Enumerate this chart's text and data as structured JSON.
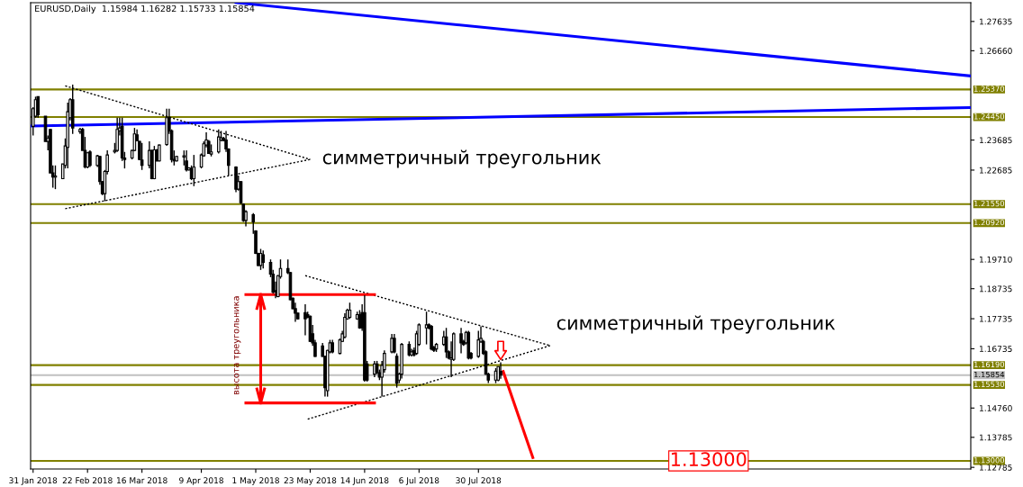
{
  "chart_data": {
    "type": "candlestick",
    "title": "EURUSD,Daily  1.15984 1.16282 1.15733 1.15854",
    "color": "#000000",
    "x": [
      "2018-01-31",
      "2018-02-01",
      "2018-02-02",
      "2018-02-05",
      "2018-02-06",
      "2018-02-07",
      "2018-02-08",
      "2018-02-09",
      "2018-02-12",
      "2018-02-13",
      "2018-02-14",
      "2018-02-15",
      "2018-02-16",
      "2018-02-19",
      "2018-02-20",
      "2018-02-21",
      "2018-02-22",
      "2018-02-23",
      "2018-02-26",
      "2018-02-27",
      "2018-02-28",
      "2018-03-01",
      "2018-03-02",
      "2018-03-05",
      "2018-03-06",
      "2018-03-07",
      "2018-03-08",
      "2018-03-09",
      "2018-03-12",
      "2018-03-13",
      "2018-03-14",
      "2018-03-15",
      "2018-03-16",
      "2018-03-19",
      "2018-03-20",
      "2018-03-21",
      "2018-03-22",
      "2018-03-23",
      "2018-03-26",
      "2018-03-27",
      "2018-03-28",
      "2018-03-29",
      "2018-03-30",
      "2018-04-02",
      "2018-04-03",
      "2018-04-04",
      "2018-04-05",
      "2018-04-06",
      "2018-04-09",
      "2018-04-10",
      "2018-04-11",
      "2018-04-12",
      "2018-04-13",
      "2018-04-16",
      "2018-04-17",
      "2018-04-18",
      "2018-04-19",
      "2018-04-20",
      "2018-04-23",
      "2018-04-24",
      "2018-04-25",
      "2018-04-26",
      "2018-04-27",
      "2018-04-30",
      "2018-05-01",
      "2018-05-02",
      "2018-05-03",
      "2018-05-04",
      "2018-05-07",
      "2018-05-08",
      "2018-05-09",
      "2018-05-10",
      "2018-05-11",
      "2018-05-14",
      "2018-05-15",
      "2018-05-16",
      "2018-05-17",
      "2018-05-18",
      "2018-05-21",
      "2018-05-22",
      "2018-05-23",
      "2018-05-24",
      "2018-05-25",
      "2018-05-28",
      "2018-05-29",
      "2018-05-30",
      "2018-05-31",
      "2018-06-01",
      "2018-06-04",
      "2018-06-05",
      "2018-06-06",
      "2018-06-07",
      "2018-06-08",
      "2018-06-11",
      "2018-06-12",
      "2018-06-13",
      "2018-06-14",
      "2018-06-15",
      "2018-06-18",
      "2018-06-19",
      "2018-06-20",
      "2018-06-21",
      "2018-06-22",
      "2018-06-25",
      "2018-06-26",
      "2018-06-27",
      "2018-06-28",
      "2018-06-29",
      "2018-07-02",
      "2018-07-03",
      "2018-07-04",
      "2018-07-05",
      "2018-07-06",
      "2018-07-09",
      "2018-07-10",
      "2018-07-11",
      "2018-07-12",
      "2018-07-13",
      "2018-07-16",
      "2018-07-17",
      "2018-07-18",
      "2018-07-19",
      "2018-07-20",
      "2018-07-23",
      "2018-07-24",
      "2018-07-25",
      "2018-07-26",
      "2018-07-27",
      "2018-07-30",
      "2018-07-31",
      "2018-08-01",
      "2018-08-02",
      "2018-08-03",
      "2018-08-06",
      "2018-08-07",
      "2018-08-08"
    ],
    "ohlc": [
      [
        1.2414,
        1.2478,
        1.2384,
        1.2473
      ],
      [
        1.2448,
        1.2513,
        1.2443,
        1.2503
      ],
      [
        1.2513,
        1.2513,
        1.2443,
        1.2453
      ],
      [
        1.2448,
        1.2448,
        1.2364,
        1.2364
      ],
      [
        1.2364,
        1.2384,
        1.2334,
        1.2374
      ],
      [
        1.2404,
        1.2404,
        1.2259,
        1.2259
      ],
      [
        1.2259,
        1.2284,
        1.221,
        1.2245
      ],
      [
        1.2245,
        1.2284,
        1.2205,
        1.2249
      ],
      [
        1.224,
        1.2289,
        1.224,
        1.2289
      ],
      [
        1.2284,
        1.2374,
        1.2274,
        1.2349
      ],
      [
        1.2344,
        1.2493,
        1.2274,
        1.2463
      ],
      [
        1.2443,
        1.2508,
        1.2434,
        1.2503
      ],
      [
        1.2503,
        1.2553,
        1.2389,
        1.2409
      ],
      [
        1.2396,
        1.2409,
        1.2389,
        1.2404
      ],
      [
        1.2404,
        1.2409,
        1.2334,
        1.2334
      ],
      [
        1.2334,
        1.2379,
        1.2274,
        1.2279
      ],
      [
        1.2279,
        1.2329,
        1.2274,
        1.2326
      ],
      [
        1.2329,
        1.2334,
        1.2279,
        1.2284
      ],
      [
        1.2284,
        1.2319,
        1.2279,
        1.2316
      ],
      [
        1.2314,
        1.2316,
        1.222,
        1.223
      ],
      [
        1.223,
        1.2232,
        1.2185,
        1.219
      ],
      [
        1.219,
        1.2269,
        1.2165,
        1.2264
      ],
      [
        1.2264,
        1.2334,
        1.2254,
        1.2319
      ],
      [
        1.2329,
        1.2359,
        1.2324,
        1.2334
      ],
      [
        1.2334,
        1.2443,
        1.2329,
        1.2404
      ],
      [
        1.2399,
        1.2443,
        1.2384,
        1.2409
      ],
      [
        1.2414,
        1.2443,
        1.2299,
        1.2309
      ],
      [
        1.2309,
        1.2329,
        1.2274,
        1.2304
      ],
      [
        1.2309,
        1.2336,
        1.2304,
        1.2334
      ],
      [
        1.2334,
        1.2409,
        1.2332,
        1.2389
      ],
      [
        1.2386,
        1.2404,
        1.2364,
        1.2366
      ],
      [
        1.2364,
        1.2366,
        1.2302,
        1.2304
      ],
      [
        1.2302,
        1.2359,
        1.2269,
        1.2284
      ],
      [
        1.2284,
        1.2364,
        1.2274,
        1.2334
      ],
      [
        1.2334,
        1.2336,
        1.2238,
        1.224
      ],
      [
        1.224,
        1.2349,
        1.2238,
        1.2336
      ],
      [
        1.2336,
        1.2339,
        1.2297,
        1.2299
      ],
      [
        1.2299,
        1.2354,
        1.2297,
        1.2352
      ],
      [
        1.2354,
        1.2473,
        1.2349,
        1.2443
      ],
      [
        1.2443,
        1.2473,
        1.2389,
        1.2399
      ],
      [
        1.2399,
        1.2404,
        1.2294,
        1.2304
      ],
      [
        1.2304,
        1.2334,
        1.2284,
        1.2299
      ],
      [
        1.2299,
        1.2316,
        1.2297,
        1.2314
      ],
      [
        1.2312,
        1.2334,
        1.2284,
        1.2316
      ],
      [
        1.2299,
        1.2334,
        1.2264,
        1.2269
      ],
      [
        1.2269,
        1.2278,
        1.2267,
        1.2276
      ],
      [
        1.2274,
        1.2284,
        1.2235,
        1.224
      ],
      [
        1.224,
        1.2319,
        1.2215,
        1.2279
      ],
      [
        1.2279,
        1.2324,
        1.2274,
        1.2319
      ],
      [
        1.2316,
        1.2364,
        1.2314,
        1.2356
      ],
      [
        1.2352,
        1.2394,
        1.2344,
        1.2369
      ],
      [
        1.2364,
        1.2369,
        1.2322,
        1.2324
      ],
      [
        1.2322,
        1.2354,
        1.2314,
        1.2329
      ],
      [
        1.2329,
        1.2404,
        1.2324,
        1.2379
      ],
      [
        1.2369,
        1.2399,
        1.2364,
        1.2376
      ],
      [
        1.2374,
        1.2379,
        1.2364,
        1.2366
      ],
      [
        1.2369,
        1.2399,
        1.2329,
        1.2339
      ],
      [
        1.2339,
        1.2341,
        1.225,
        1.2284
      ],
      [
        1.2279,
        1.2281,
        1.2195,
        1.2205
      ],
      [
        1.2205,
        1.225,
        1.22,
        1.223
      ],
      [
        1.223,
        1.2232,
        1.2155,
        1.216
      ],
      [
        1.2155,
        1.2157,
        1.2096,
        1.2101
      ],
      [
        1.2101,
        1.2135,
        1.2081,
        1.213
      ],
      [
        1.212,
        1.2125,
        1.2056,
        1.2096
      ],
      [
        1.2066,
        1.2068,
        1.1989,
        1.1991
      ],
      [
        1.1991,
        1.1993,
        1.1949,
        1.1951
      ],
      [
        1.1951,
        1.2006,
        1.1936,
        1.1991
      ],
      [
        1.1986,
        1.2001,
        1.1941,
        1.1961
      ],
      [
        1.1961,
        1.1971,
        1.1912,
        1.1922
      ],
      [
        1.1922,
        1.1936,
        1.1857,
        1.1862
      ],
      [
        1.1867,
        1.1897,
        1.1842,
        1.1862
      ],
      [
        1.1847,
        1.1919,
        1.1845,
        1.1917
      ],
      [
        1.1914,
        1.1971,
        1.1907,
        1.1941
      ],
      [
        1.1941,
        1.1971,
        1.1922,
        1.1927
      ],
      [
        1.1927,
        1.1929,
        1.1835,
        1.1837
      ],
      [
        1.1842,
        1.1844,
        1.1805,
        1.1807
      ],
      [
        1.1807,
        1.1827,
        1.1763,
        1.1792
      ],
      [
        1.1792,
        1.1794,
        1.1771,
        1.1773
      ],
      [
        1.1794,
        1.1822,
        1.1718,
        1.1773
      ],
      [
        1.1787,
        1.1797,
        1.1775,
        1.1778
      ],
      [
        1.1782,
        1.1784,
        1.1696,
        1.1698
      ],
      [
        1.1723,
        1.1753,
        1.1683,
        1.1693
      ],
      [
        1.1693,
        1.1703,
        1.1646,
        1.1648
      ],
      [
        1.1683,
        1.1693,
        1.1646,
        1.1648
      ],
      [
        1.1648,
        1.165,
        1.1514,
        1.1544
      ],
      [
        1.1534,
        1.167,
        1.1514,
        1.1668
      ],
      [
        1.1663,
        1.1703,
        1.1658,
        1.1693
      ],
      [
        1.1693,
        1.1703,
        1.1658,
        1.1663
      ],
      [
        1.1658,
        1.1708,
        1.1655,
        1.1703
      ],
      [
        1.1698,
        1.1733,
        1.1696,
        1.1723
      ],
      [
        1.1713,
        1.1792,
        1.1708,
        1.1778
      ],
      [
        1.1773,
        1.1807,
        1.177,
        1.1802
      ],
      [
        1.1778,
        1.1827,
        1.1773,
        1.1802
      ],
      [
        1.1773,
        1.1797,
        1.177,
        1.1787
      ],
      [
        1.1787,
        1.1802,
        1.174,
        1.1743
      ],
      [
        1.1794,
        1.1822,
        1.1733,
        1.1743
      ],
      [
        1.1794,
        1.1852,
        1.1564,
        1.1569
      ],
      [
        1.1623,
        1.1633,
        1.1564,
        1.1569
      ],
      [
        1.1589,
        1.1633,
        1.1579,
        1.1623
      ],
      [
        1.1623,
        1.1633,
        1.1589,
        1.1594
      ],
      [
        1.1594,
        1.1604,
        1.1569,
        1.1579
      ],
      [
        1.1579,
        1.1633,
        1.1514,
        1.1618
      ],
      [
        1.1604,
        1.1668,
        1.1594,
        1.1658
      ],
      [
        1.1663,
        1.1723,
        1.1658,
        1.1708
      ],
      [
        1.1708,
        1.1723,
        1.1658,
        1.1663
      ],
      [
        1.1648,
        1.1658,
        1.1544,
        1.1559
      ],
      [
        1.1569,
        1.1594,
        1.1559,
        1.1589
      ],
      [
        1.1589,
        1.1693,
        1.1574,
        1.1688
      ],
      [
        1.1688,
        1.1698,
        1.1648,
        1.1653
      ],
      [
        1.1653,
        1.1673,
        1.1648,
        1.1663
      ],
      [
        1.1668,
        1.1678,
        1.1648,
        1.1653
      ],
      [
        1.1658,
        1.1733,
        1.1653,
        1.1723
      ],
      [
        1.1688,
        1.1758,
        1.1683,
        1.1753
      ],
      [
        1.1743,
        1.1797,
        1.1688,
        1.1753
      ],
      [
        1.1753,
        1.1758,
        1.1738,
        1.1743
      ],
      [
        1.1748,
        1.1753,
        1.1668,
        1.1673
      ],
      [
        1.1678,
        1.1683,
        1.1663,
        1.1668
      ],
      [
        1.1673,
        1.1693,
        1.1663,
        1.1688
      ],
      [
        1.1688,
        1.1733,
        1.1683,
        1.1713
      ],
      [
        1.1713,
        1.1743,
        1.1643,
        1.1663
      ],
      [
        1.1663,
        1.1668,
        1.1638,
        1.1643
      ],
      [
        1.1638,
        1.1698,
        1.1579,
        1.1643
      ],
      [
        1.1638,
        1.1728,
        1.1633,
        1.1723
      ],
      [
        1.1723,
        1.1743,
        1.1658,
        1.1693
      ],
      [
        1.1698,
        1.1703,
        1.1683,
        1.1688
      ],
      [
        1.1693,
        1.1733,
        1.1688,
        1.1728
      ],
      [
        1.1728,
        1.1733,
        1.1638,
        1.1643
      ],
      [
        1.1658,
        1.1663,
        1.1638,
        1.1643
      ],
      [
        1.1648,
        1.1733,
        1.1643,
        1.1703
      ],
      [
        1.1698,
        1.1748,
        1.1693,
        1.1708
      ],
      [
        1.1698,
        1.1703,
        1.1653,
        1.1658
      ],
      [
        1.1663,
        1.1668,
        1.1587,
        1.1589
      ],
      [
        1.1589,
        1.1594,
        1.1559,
        1.1569
      ],
      [
        1.1569,
        1.1609,
        1.1559,
        1.1599
      ],
      [
        1.1569,
        1.1614,
        1.1565,
        1.1614
      ],
      [
        1.15984,
        1.16282,
        1.15733,
        1.15854
      ]
    ],
    "series": [
      {
        "type": "line",
        "x": [
          "2018-04-23",
          "2019-02-14"
        ],
        "values": [
          1.2826,
          1.2582
        ],
        "color": "#0000ff",
        "line_style": "solid"
      },
      {
        "type": "line",
        "x": [
          "2018-01-30",
          "2019-02-14"
        ],
        "values": [
          1.2415,
          1.2477
        ],
        "color": "#0000ff",
        "line_style": "solid"
      },
      {
        "type": "line",
        "x": [
          "2018-02-13",
          "2018-05-23"
        ],
        "values": [
          1.2549,
          1.2304
        ],
        "color": "#000000",
        "line_style": "dotted"
      },
      {
        "type": "line",
        "x": [
          "2018-02-13",
          "2018-05-23"
        ],
        "values": [
          1.214,
          1.2304
        ],
        "color": "#000000",
        "line_style": "dotted"
      },
      {
        "type": "line",
        "x": [
          "2018-05-21",
          "2018-08-28"
        ],
        "values": [
          1.1917,
          1.1684
        ],
        "color": "#000000",
        "line_style": "dotted"
      },
      {
        "type": "line",
        "x": [
          "2018-05-22",
          "2018-08-28"
        ],
        "values": [
          1.1439,
          1.1684
        ],
        "color": "#000000",
        "line_style": "dotted"
      },
      {
        "type": "line",
        "x": [
          "2018-04-27",
          "2018-06-18"
        ],
        "values": [
          1.1854,
          1.1854
        ],
        "color": "#ff0000",
        "line_style": "solid"
      },
      {
        "type": "line",
        "x": [
          "2018-04-27",
          "2018-06-18"
        ],
        "values": [
          1.1493,
          1.1493
        ],
        "color": "#ff0000",
        "line_style": "solid"
      },
      {
        "type": "line",
        "x": [
          "2018-05-03",
          "2018-05-03"
        ],
        "values": [
          1.1854,
          1.1493
        ],
        "color": "#ff0000",
        "line_style": "solid"
      },
      {
        "type": "line",
        "x": [
          "2018-08-09",
          "2018-08-21"
        ],
        "values": [
          1.1598,
          1.1311
        ],
        "color": "#ff0000",
        "line_style": "solid"
      }
    ],
    "ref_lines": [
      {
        "axis": "y",
        "value": 1.2537,
        "label": "1.25370",
        "color": "#808000"
      },
      {
        "axis": "y",
        "value": 1.2445,
        "label": "1.24450",
        "color": "#808000"
      },
      {
        "axis": "y",
        "value": 1.2155,
        "label": "1.21550",
        "color": "#808000"
      },
      {
        "axis": "y",
        "value": 1.2092,
        "label": "1.20920",
        "color": "#808000"
      },
      {
        "axis": "y",
        "value": 1.1619,
        "label": "1.16190",
        "color": "#808000"
      },
      {
        "axis": "y",
        "value": 1.15854,
        "label": "1.15854",
        "color": "#c0c0c0"
      },
      {
        "axis": "y",
        "value": 1.1553,
        "label": "1.15530",
        "color": "#808000"
      },
      {
        "axis": "y",
        "value": 1.13,
        "label": "1.13000",
        "color": "#808000"
      }
    ],
    "annotations": [
      "симметричный треугольник",
      "симметричный треугольник",
      "высота треугольника",
      {
        "text": "1.13000",
        "x": "2018-10-31",
        "y": 1.13
      }
    ],
    "xlim": [
      "2018-01-30",
      "2019-02-14"
    ],
    "xticks": [
      {
        "value": "2018-01-31",
        "label": "31 Jan 2018"
      },
      {
        "value": "2018-02-22",
        "label": "22 Feb 2018"
      },
      {
        "value": "2018-03-16",
        "label": "16 Mar 2018"
      },
      {
        "value": "2018-04-09",
        "label": "9 Apr 2018"
      },
      {
        "value": "2018-05-01",
        "label": "1 May 2018"
      },
      {
        "value": "2018-05-23",
        "label": "23 May 2018"
      },
      {
        "value": "2018-06-14",
        "label": "14 Jun 2018"
      },
      {
        "value": "2018-07-06",
        "label": "6 Jul 2018"
      },
      {
        "value": "2018-07-30",
        "label": "30 Jul 2018"
      }
    ],
    "ylim": [
      1.1273,
      1.2826
    ],
    "yticks": [
      {
        "value": 1.27635,
        "label": "1.27635"
      },
      {
        "value": 1.2666,
        "label": "1.26660"
      },
      {
        "value": 1.23685,
        "label": "1.23685"
      },
      {
        "value": 1.22685,
        "label": "1.22685"
      },
      {
        "value": 1.1971,
        "label": "1.19710"
      },
      {
        "value": 1.18735,
        "label": "1.18735"
      },
      {
        "value": 1.17735,
        "label": "1.17735"
      },
      {
        "value": 1.16735,
        "label": "1.16735"
      },
      {
        "value": 1.1476,
        "label": "1.14760"
      },
      {
        "value": 1.13785,
        "label": "1.13785"
      },
      {
        "value": 1.12785,
        "label": "1.12785"
      }
    ],
    "grid": false
  }
}
